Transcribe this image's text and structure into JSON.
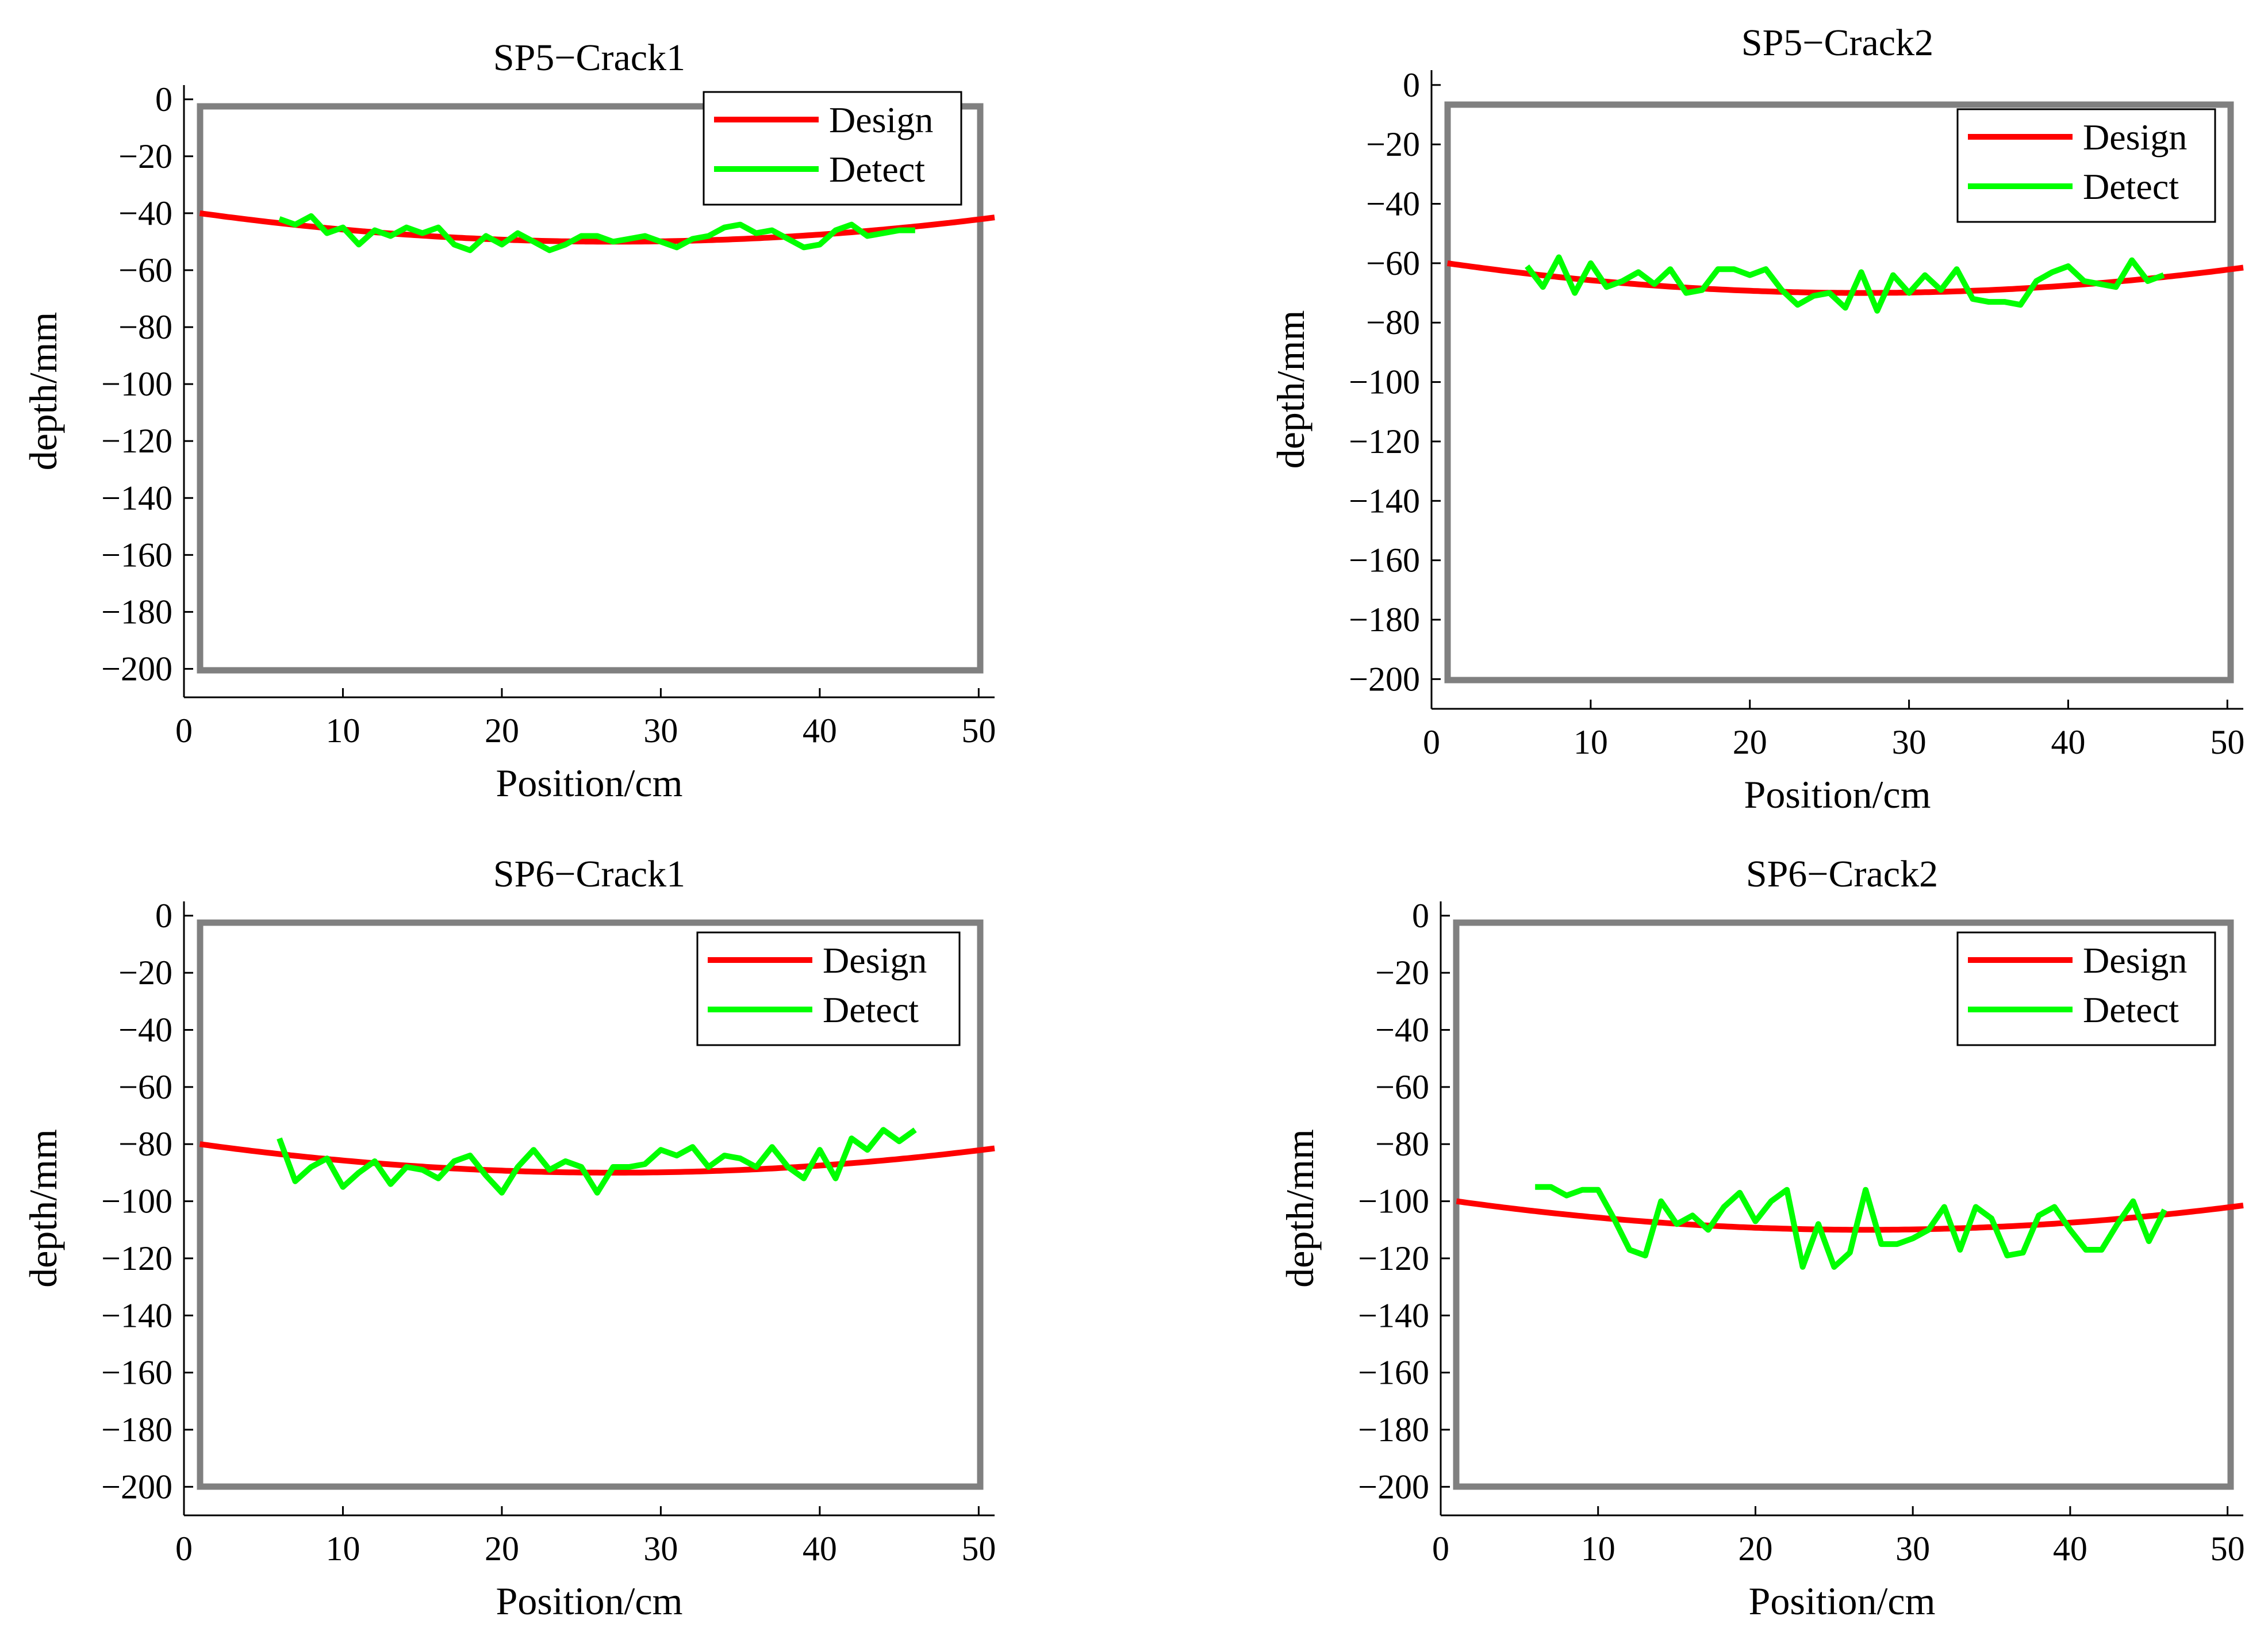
{
  "figure": {
    "colors": {
      "design": "#ff0000",
      "detect": "#00ff00",
      "frame": "#808080",
      "axis": "#000000"
    }
  },
  "chart_data": [
    {
      "type": "line",
      "title": "SP5−Crack1",
      "xlabel": "Position/cm",
      "ylabel": "depth/mm",
      "xlim": [
        0,
        51
      ],
      "ylim": [
        -210,
        5
      ],
      "xticks": [
        0,
        10,
        20,
        30,
        40,
        50
      ],
      "yticks": [
        0,
        -20,
        -40,
        -60,
        -80,
        -100,
        -120,
        -140,
        -160,
        -180,
        -200
      ],
      "legend": "top-right",
      "series": [
        {
          "name": "Design",
          "design_curve": {
            "center": 27,
            "min_depth": -50,
            "end_depth": -40,
            "x_start": 1,
            "x_end": 51
          }
        },
        {
          "name": "Detect",
          "x": [
            6,
            7,
            8,
            9,
            10,
            11,
            12,
            13,
            14,
            15,
            16,
            17,
            18,
            19,
            20,
            21,
            22,
            23,
            24,
            25,
            26,
            27,
            28,
            29,
            30,
            31,
            32,
            33,
            34,
            35,
            36,
            37,
            38,
            39,
            40,
            41,
            42,
            43,
            44,
            45,
            46
          ],
          "y": [
            -42,
            -44,
            -41,
            -47,
            -45,
            -51,
            -46,
            -48,
            -45,
            -47,
            -45,
            -51,
            -53,
            -48,
            -51,
            -47,
            -50,
            -53,
            -51,
            -48,
            -48,
            -50,
            -49,
            -48,
            -50,
            -52,
            -49,
            -48,
            -45,
            -44,
            -47,
            -46,
            -49,
            -52,
            -51,
            -46,
            -44,
            -48,
            -47,
            -46,
            -46
          ]
        }
      ]
    },
    {
      "type": "line",
      "title": "SP5−Crack2",
      "xlabel": "Position/cm",
      "ylabel": "depth/mm",
      "xlim": [
        0,
        51
      ],
      "ylim": [
        -210,
        5
      ],
      "xticks": [
        0,
        10,
        20,
        30,
        40,
        50
      ],
      "yticks": [
        0,
        -20,
        -40,
        -60,
        -80,
        -100,
        -120,
        -140,
        -160,
        -180,
        -200
      ],
      "legend": "top-right",
      "series": [
        {
          "name": "Design",
          "design_curve": {
            "center": 27,
            "min_depth": -70,
            "end_depth": -60,
            "x_start": 1,
            "x_end": 51
          }
        },
        {
          "name": "Detect",
          "x": [
            6,
            7,
            8,
            9,
            10,
            11,
            12,
            13,
            14,
            15,
            16,
            17,
            18,
            19,
            20,
            21,
            22,
            23,
            24,
            25,
            26,
            27,
            28,
            29,
            30,
            31,
            32,
            33,
            34,
            35,
            36,
            37,
            38,
            39,
            40,
            41,
            42,
            43,
            44,
            45,
            46
          ],
          "y": [
            -61,
            -68,
            -58,
            -70,
            -60,
            -68,
            -66,
            -63,
            -67,
            -62,
            -70,
            -69,
            -62,
            -62,
            -64,
            -62,
            -69,
            -74,
            -71,
            -70,
            -75,
            -63,
            -76,
            -64,
            -70,
            -64,
            -69,
            -62,
            -72,
            -73,
            -73,
            -74,
            -66,
            -63,
            -61,
            -66,
            -67,
            -68,
            -59,
            -66,
            -64
          ]
        }
      ]
    },
    {
      "type": "line",
      "title": "SP6−Crack1",
      "xlabel": "Position/cm",
      "ylabel": "depth/mm",
      "xlim": [
        0,
        51
      ],
      "ylim": [
        -210,
        5
      ],
      "xticks": [
        0,
        10,
        20,
        30,
        40,
        50
      ],
      "yticks": [
        0,
        -20,
        -40,
        -60,
        -80,
        -100,
        -120,
        -140,
        -160,
        -180,
        -200
      ],
      "legend": "top-right",
      "series": [
        {
          "name": "Design",
          "design_curve": {
            "center": 27,
            "min_depth": -90,
            "end_depth": -80,
            "x_start": 1,
            "x_end": 51
          }
        },
        {
          "name": "Detect",
          "x": [
            6,
            7,
            8,
            9,
            10,
            11,
            12,
            13,
            14,
            15,
            16,
            17,
            18,
            19,
            20,
            21,
            22,
            23,
            24,
            25,
            26,
            27,
            28,
            29,
            30,
            31,
            32,
            33,
            34,
            35,
            36,
            37,
            38,
            39,
            40,
            41,
            42,
            43,
            44,
            45,
            46
          ],
          "y": [
            -78,
            -93,
            -88,
            -85,
            -95,
            -90,
            -86,
            -94,
            -88,
            -89,
            -92,
            -86,
            -84,
            -91,
            -97,
            -88,
            -82,
            -89,
            -86,
            -88,
            -97,
            -88,
            -88,
            -87,
            -82,
            -84,
            -81,
            -88,
            -84,
            -85,
            -88,
            -81,
            -88,
            -92,
            -82,
            -92,
            -78,
            -82,
            -75,
            -79,
            -75
          ]
        }
      ]
    },
    {
      "type": "line",
      "title": "SP6−Crack2",
      "xlabel": "Position/cm",
      "ylabel": "depth/mm",
      "xlim": [
        0,
        51
      ],
      "ylim": [
        -210,
        5
      ],
      "xticks": [
        0,
        10,
        20,
        30,
        40,
        50
      ],
      "yticks": [
        0,
        -20,
        -40,
        -60,
        -80,
        -100,
        -120,
        -140,
        -160,
        -180,
        -200
      ],
      "legend": "top-right",
      "series": [
        {
          "name": "Design",
          "design_curve": {
            "center": 27,
            "min_depth": -110,
            "end_depth": -100,
            "x_start": 1,
            "x_end": 51
          }
        },
        {
          "name": "Detect",
          "x": [
            6,
            7,
            8,
            9,
            10,
            11,
            12,
            13,
            14,
            15,
            16,
            17,
            18,
            19,
            20,
            21,
            22,
            23,
            24,
            25,
            26,
            27,
            28,
            29,
            30,
            31,
            32,
            33,
            34,
            35,
            36,
            37,
            38,
            39,
            40,
            41,
            42,
            43,
            44,
            45,
            46
          ],
          "y": [
            -95,
            -95,
            -98,
            -96,
            -96,
            -106,
            -117,
            -119,
            -100,
            -108,
            -105,
            -110,
            -102,
            -97,
            -107,
            -100,
            -96,
            -123,
            -108,
            -123,
            -118,
            -96,
            -115,
            -115,
            -113,
            -110,
            -102,
            -117,
            -102,
            -106,
            -119,
            -118,
            -105,
            -102,
            -110,
            -117,
            -117,
            -108,
            -100,
            -114,
            -103
          ]
        }
      ]
    }
  ]
}
